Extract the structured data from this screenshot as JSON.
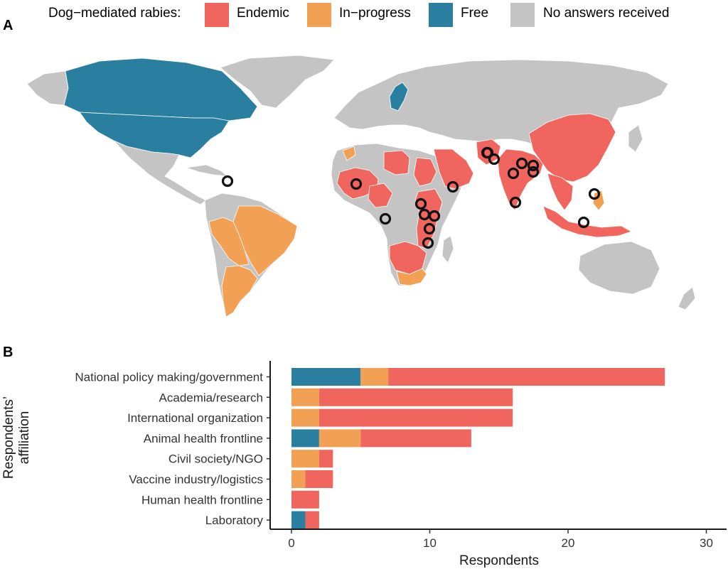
{
  "legend": {
    "title": "Dog−mediated rabies:",
    "items": [
      {
        "label": "Endemic",
        "color": "#f0665e"
      },
      {
        "label": "In−progress",
        "color": "#f2a054"
      },
      {
        "label": "Free",
        "color": "#2a7fa0"
      },
      {
        "label": "No answers received",
        "color": "#c4c4c4"
      }
    ]
  },
  "panels": {
    "a": "A",
    "b": "B"
  },
  "map": {
    "statuses": {
      "free": [
        "Canada",
        "United States",
        "Sweden"
      ],
      "in_progress": [
        "Brazil",
        "Peru",
        "Bolivia",
        "Argentina",
        "Paraguay",
        "Uruguay",
        "Chile",
        "Morocco",
        "South Africa",
        "Philippines"
      ],
      "endemic": [
        "Mali",
        "Nigeria",
        "Niger",
        "Libya",
        "Chad",
        "Sudan",
        "Ethiopia",
        "Kenya",
        "Tanzania",
        "Mozambique",
        "Zambia",
        "Zimbabwe",
        "Angola",
        "Namibia",
        "Botswana",
        "Cameroon",
        "Saudi Arabia",
        "Yemen",
        "Oman",
        "India",
        "Pakistan",
        "Nepal",
        "Bangladesh",
        "China",
        "Myanmar",
        "Thailand",
        "Vietnam",
        "Cambodia",
        "Laos",
        "Indonesia",
        "Malaysia",
        "Sri Lanka",
        "Guinea",
        "Sierra Leone"
      ]
    },
    "respondent_marker_count": 19
  },
  "chart_data": {
    "type": "bar",
    "orientation": "horizontal",
    "stacked": true,
    "categories": [
      "National policy making/government",
      "Academia/research",
      "International organization",
      "Animal health frontline",
      "Civil society/NGO",
      "Vaccine industry/logistics",
      "Human health frontline",
      "Laboratory"
    ],
    "series": [
      {
        "name": "Free",
        "color": "#2a7fa0",
        "values": [
          5,
          0,
          0,
          2,
          0,
          0,
          0,
          1
        ]
      },
      {
        "name": "In−progress",
        "color": "#f2a054",
        "values": [
          2,
          2,
          2,
          3,
          2,
          1,
          0,
          0
        ]
      },
      {
        "name": "Endemic",
        "color": "#f0665e",
        "values": [
          20,
          14,
          14,
          8,
          1,
          2,
          2,
          1
        ]
      }
    ],
    "xlabel": "Respondents",
    "ylabel": "Respondents’\naffiliation",
    "ylabel_lines": [
      "Respondents’",
      "affiliation"
    ],
    "xlim": [
      0,
      31
    ],
    "xticks": [
      0,
      10,
      20,
      30
    ],
    "grid": false,
    "legend": "top"
  }
}
